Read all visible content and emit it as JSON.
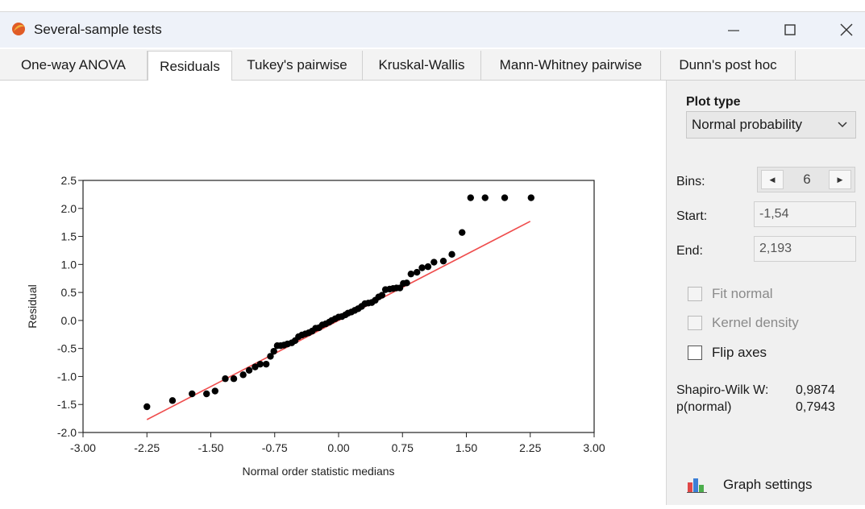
{
  "window": {
    "title": "Several-sample tests",
    "controls": {
      "minimize": "minimize-icon",
      "maximize": "maximize-icon",
      "close": "close-icon"
    }
  },
  "tabs": [
    {
      "label": "One-way ANOVA",
      "active": false
    },
    {
      "label": "Residuals",
      "active": true
    },
    {
      "label": "Tukey's pairwise",
      "active": false
    },
    {
      "label": "Kruskal-Wallis",
      "active": false
    },
    {
      "label": "Mann-Whitney pairwise",
      "active": false
    },
    {
      "label": "Dunn's post hoc",
      "active": false
    }
  ],
  "side_panel": {
    "plot_type_heading": "Plot type",
    "plot_type_value": "Normal probability",
    "bins_label": "Bins:",
    "bins_value": "6",
    "start_label": "Start:",
    "start_value": "-1,54",
    "end_label": "End:",
    "end_value": "2,193",
    "fit_normal_label": "Fit normal",
    "kernel_density_label": "Kernel density",
    "flip_axes_label": "Flip axes",
    "shapiro_label": "Shapiro-Wilk W:",
    "shapiro_value": "0,9874",
    "pnormal_label": "p(normal)",
    "pnormal_value": "0,7943",
    "graph_settings_label": "Graph settings"
  },
  "chart_data": {
    "type": "scatter",
    "xlabel": "Normal order statistic medians",
    "ylabel": "Residual",
    "xlim": [
      -3.0,
      3.0
    ],
    "ylim": [
      -2.0,
      2.5
    ],
    "xticks": [
      "-3.00",
      "-2.25",
      "-1.50",
      "-0.75",
      "0.00",
      "0.75",
      "1.50",
      "2.25",
      "3.00"
    ],
    "yticks": [
      "2.5",
      "2.0",
      "1.5",
      "1.0",
      "0.5",
      "0.0",
      "-0.5",
      "-1.0",
      "-1.5",
      "-2.0"
    ],
    "x": [
      -2.25,
      -1.95,
      -1.72,
      -1.55,
      -1.45,
      -1.33,
      -1.23,
      -1.12,
      -1.05,
      -0.98,
      -0.92,
      -0.85,
      -0.8,
      -0.76,
      -0.72,
      -0.68,
      -0.64,
      -0.6,
      -0.55,
      -0.51,
      -0.47,
      -0.43,
      -0.39,
      -0.35,
      -0.31,
      -0.27,
      -0.23,
      -0.19,
      -0.15,
      -0.11,
      -0.08,
      -0.04,
      0.0,
      0.04,
      0.08,
      0.11,
      0.15,
      0.19,
      0.23,
      0.27,
      0.31,
      0.35,
      0.39,
      0.43,
      0.47,
      0.51,
      0.55,
      0.6,
      0.64,
      0.68,
      0.72,
      0.76,
      0.8,
      0.85,
      0.92,
      0.98,
      1.05,
      1.12,
      1.23,
      1.33,
      1.45,
      1.55,
      1.72,
      1.95,
      2.26
    ],
    "y": [
      -1.54,
      -1.43,
      -1.31,
      -1.31,
      -1.26,
      -1.04,
      -1.04,
      -0.97,
      -0.89,
      -0.83,
      -0.78,
      -0.78,
      -0.64,
      -0.55,
      -0.45,
      -0.45,
      -0.44,
      -0.42,
      -0.4,
      -0.36,
      -0.29,
      -0.26,
      -0.24,
      -0.22,
      -0.19,
      -0.14,
      -0.13,
      -0.08,
      -0.06,
      -0.03,
      0.0,
      0.03,
      0.06,
      0.07,
      0.1,
      0.13,
      0.15,
      0.18,
      0.21,
      0.25,
      0.3,
      0.31,
      0.32,
      0.36,
      0.42,
      0.45,
      0.55,
      0.56,
      0.57,
      0.58,
      0.58,
      0.66,
      0.67,
      0.83,
      0.86,
      0.94,
      0.96,
      1.04,
      1.06,
      1.18,
      1.57,
      2.19,
      2.19,
      2.19,
      2.19
    ],
    "fit_line": {
      "x": [
        -2.25,
        2.25
      ],
      "y": [
        -1.77,
        1.77
      ]
    },
    "marker_color": "#000000",
    "line_color": "#ef4d4d",
    "grid": false
  }
}
